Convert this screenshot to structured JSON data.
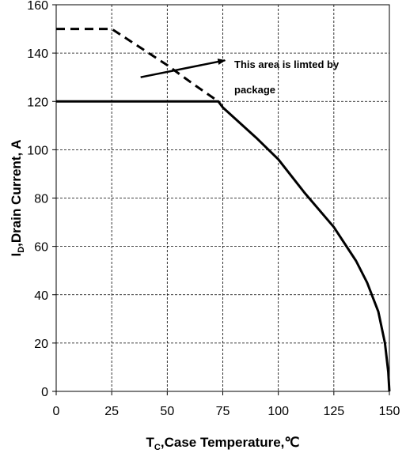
{
  "chart_data": {
    "type": "line",
    "title": "",
    "xlabel": {
      "main": "T",
      "sub": "C",
      "rest": ",Case Temperature,℃"
    },
    "ylabel": {
      "main": "I",
      "sub": "D",
      "rest": ",Drain  Current, A"
    },
    "xlim": [
      0,
      150
    ],
    "ylim": [
      0,
      160
    ],
    "xticks": [
      0,
      25,
      50,
      75,
      100,
      125,
      150
    ],
    "yticks": [
      0,
      20,
      40,
      60,
      80,
      100,
      120,
      140,
      160
    ],
    "xtick_labels": [
      "0",
      "25",
      "50",
      "75",
      "100",
      "125",
      "150"
    ],
    "ytick_labels": [
      "0",
      "20",
      "40",
      "60",
      "80",
      "100",
      "120",
      "140",
      "160"
    ],
    "grid": true,
    "series": [
      {
        "style": "solid",
        "color": "#000000",
        "points": [
          [
            0,
            120
          ],
          [
            25,
            120
          ],
          [
            50,
            120
          ],
          [
            73,
            120
          ],
          [
            75,
            117.5
          ],
          [
            90,
            105
          ],
          [
            100,
            96
          ],
          [
            112,
            82
          ],
          [
            125,
            68
          ],
          [
            135,
            54
          ],
          [
            140,
            45
          ],
          [
            145,
            33
          ],
          [
            148,
            20
          ],
          [
            149.5,
            8
          ],
          [
            150,
            0
          ]
        ]
      },
      {
        "style": "dashed",
        "color": "#000000",
        "points": [
          [
            0,
            150
          ],
          [
            25,
            150
          ],
          [
            50,
            135
          ],
          [
            62,
            127
          ],
          [
            73,
            120
          ]
        ]
      }
    ],
    "annotation": {
      "lines": [
        "This area is limted by",
        "package"
      ],
      "arrow_from": [
        38,
        130
      ],
      "arrow_to": [
        76,
        137
      ]
    }
  }
}
